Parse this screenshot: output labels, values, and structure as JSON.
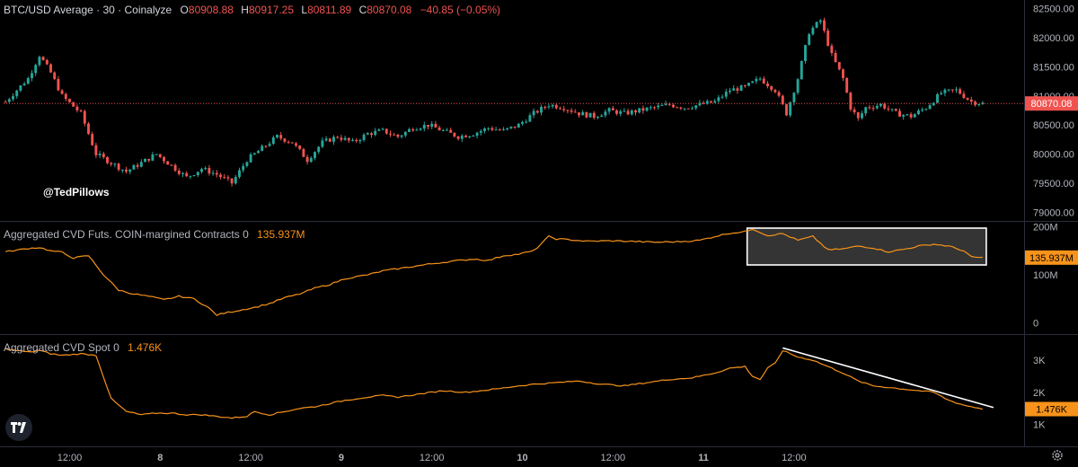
{
  "header": {
    "symbol": "BTC/USD Average · 30 · Coinalyze",
    "o_label": "O",
    "o_value": "80908.88",
    "h_label": "H",
    "h_value": "80917.25",
    "l_label": "L",
    "l_value": "80811.89",
    "c_label": "C",
    "c_value": "80870.08",
    "change": "−40.85 (−0.05%)"
  },
  "watermark": "@TedPillows",
  "colors": {
    "up": "#26a69a",
    "down": "#ef5350",
    "cvd": "#f7931a",
    "price_tag": "#ef5350",
    "cvd_tag": "#f7931a"
  },
  "chart_data": [
    {
      "type": "candlestick",
      "title": "BTC/USD Average · 30 · Coinalyze",
      "x_unit": "30-minute bars",
      "y_ticks": [
        79000,
        79500,
        80000,
        80500,
        81000,
        81500,
        82000,
        82500
      ],
      "y_tick_labels": [
        "79000.00",
        "79500.00",
        "80000.00",
        "80500.00",
        "81000.00",
        "81500.00",
        "82000.00",
        "82500.00"
      ],
      "ylim": [
        78850,
        82650
      ],
      "last_value": "80870.08",
      "close_path": [
        [
          0,
          80900
        ],
        [
          6,
          81300
        ],
        [
          9,
          81700
        ],
        [
          12,
          81400
        ],
        [
          15,
          81000
        ],
        [
          20,
          80700
        ],
        [
          24,
          80000
        ],
        [
          28,
          79850
        ],
        [
          32,
          79700
        ],
        [
          36,
          79850
        ],
        [
          40,
          80000
        ],
        [
          44,
          79800
        ],
        [
          48,
          79600
        ],
        [
          52,
          79750
        ],
        [
          56,
          79650
        ],
        [
          60,
          79500
        ],
        [
          64,
          79900
        ],
        [
          68,
          80100
        ],
        [
          72,
          80300
        ],
        [
          76,
          80200
        ],
        [
          80,
          79900
        ],
        [
          84,
          80200
        ],
        [
          88,
          80300
        ],
        [
          92,
          80200
        ],
        [
          96,
          80350
        ],
        [
          100,
          80400
        ],
        [
          104,
          80300
        ],
        [
          108,
          80450
        ],
        [
          112,
          80500
        ],
        [
          116,
          80400
        ],
        [
          120,
          80300
        ],
        [
          124,
          80350
        ],
        [
          128,
          80450
        ],
        [
          132,
          80400
        ],
        [
          136,
          80500
        ],
        [
          140,
          80700
        ],
        [
          144,
          80850
        ],
        [
          148,
          80800
        ],
        [
          152,
          80700
        ],
        [
          156,
          80650
        ],
        [
          160,
          80750
        ],
        [
          164,
          80700
        ],
        [
          168,
          80750
        ],
        [
          172,
          80800
        ],
        [
          176,
          80850
        ],
        [
          180,
          80800
        ],
        [
          184,
          80850
        ],
        [
          188,
          80900
        ],
        [
          192,
          81100
        ],
        [
          196,
          81150
        ],
        [
          200,
          81300
        ],
        [
          204,
          81100
        ],
        [
          207,
          80700
        ],
        [
          210,
          81300
        ],
        [
          213,
          82100
        ],
        [
          216,
          82300
        ],
        [
          219,
          81700
        ],
        [
          222,
          81300
        ],
        [
          224,
          80800
        ],
        [
          226,
          80600
        ],
        [
          228,
          80800
        ],
        [
          232,
          80850
        ],
        [
          236,
          80700
        ],
        [
          240,
          80650
        ],
        [
          244,
          80800
        ],
        [
          248,
          81050
        ],
        [
          252,
          81100
        ],
        [
          256,
          80900
        ],
        [
          259,
          80870
        ]
      ]
    },
    {
      "type": "line",
      "title": "Aggregated CVD Futs. COIN-margined Contracts 0",
      "last_value": "135.937M",
      "y_ticks": [
        0,
        100,
        200
      ],
      "y_tick_labels": [
        "0",
        "100M",
        "200M"
      ],
      "y_unit": "M",
      "ylim": [
        -20,
        205
      ],
      "points": [
        [
          0,
          148
        ],
        [
          6,
          155
        ],
        [
          9,
          157
        ],
        [
          12,
          150
        ],
        [
          15,
          147
        ],
        [
          18,
          135
        ],
        [
          22,
          140
        ],
        [
          26,
          100
        ],
        [
          30,
          68
        ],
        [
          34,
          60
        ],
        [
          38,
          55
        ],
        [
          42,
          48
        ],
        [
          46,
          55
        ],
        [
          50,
          50
        ],
        [
          54,
          30
        ],
        [
          56,
          16
        ],
        [
          58,
          20
        ],
        [
          62,
          26
        ],
        [
          66,
          32
        ],
        [
          70,
          40
        ],
        [
          74,
          52
        ],
        [
          78,
          60
        ],
        [
          82,
          72
        ],
        [
          86,
          80
        ],
        [
          90,
          92
        ],
        [
          96,
          100
        ],
        [
          100,
          108
        ],
        [
          106,
          115
        ],
        [
          112,
          122
        ],
        [
          118,
          128
        ],
        [
          124,
          133
        ],
        [
          128,
          130
        ],
        [
          132,
          140
        ],
        [
          136,
          143
        ],
        [
          140,
          150
        ],
        [
          142,
          165
        ],
        [
          144,
          180
        ],
        [
          146,
          175
        ],
        [
          150,
          173
        ],
        [
          154,
          170
        ],
        [
          160,
          171
        ],
        [
          166,
          170
        ],
        [
          172,
          168
        ],
        [
          178,
          169
        ],
        [
          184,
          172
        ],
        [
          188,
          180
        ],
        [
          192,
          187
        ],
        [
          196,
          190
        ],
        [
          198,
          196
        ],
        [
          202,
          182
        ],
        [
          206,
          186
        ],
        [
          210,
          172
        ],
        [
          214,
          180
        ],
        [
          218,
          152
        ],
        [
          222,
          154
        ],
        [
          226,
          160
        ],
        [
          230,
          156
        ],
        [
          234,
          148
        ],
        [
          238,
          153
        ],
        [
          242,
          160
        ],
        [
          246,
          164
        ],
        [
          250,
          160
        ],
        [
          254,
          150
        ],
        [
          256,
          137
        ],
        [
          259,
          136
        ]
      ],
      "highlight_range": [
        198,
        259
      ]
    },
    {
      "type": "line",
      "title": "Aggregated CVD Spot 0",
      "last_value": "1.476K",
      "y_ticks": [
        1000,
        2000,
        3000
      ],
      "y_tick_labels": [
        "1K",
        "2K",
        "3K"
      ],
      "y_unit": "K",
      "ylim": [
        400,
        3700
      ],
      "points": [
        [
          0,
          3350
        ],
        [
          6,
          3250
        ],
        [
          9,
          3300
        ],
        [
          12,
          3200
        ],
        [
          15,
          3150
        ],
        [
          20,
          3200
        ],
        [
          24,
          3150
        ],
        [
          28,
          1800
        ],
        [
          32,
          1400
        ],
        [
          36,
          1300
        ],
        [
          40,
          1350
        ],
        [
          44,
          1350
        ],
        [
          48,
          1300
        ],
        [
          52,
          1300
        ],
        [
          56,
          1250
        ],
        [
          60,
          1200
        ],
        [
          64,
          1250
        ],
        [
          66,
          1400
        ],
        [
          70,
          1300
        ],
        [
          74,
          1400
        ],
        [
          78,
          1500
        ],
        [
          82,
          1550
        ],
        [
          86,
          1650
        ],
        [
          90,
          1750
        ],
        [
          96,
          1850
        ],
        [
          100,
          1900
        ],
        [
          104,
          1850
        ],
        [
          110,
          1950
        ],
        [
          116,
          2050
        ],
        [
          122,
          2000
        ],
        [
          130,
          2100
        ],
        [
          136,
          2200
        ],
        [
          140,
          2250
        ],
        [
          146,
          2300
        ],
        [
          152,
          2350
        ],
        [
          158,
          2250
        ],
        [
          164,
          2200
        ],
        [
          170,
          2300
        ],
        [
          176,
          2400
        ],
        [
          182,
          2450
        ],
        [
          188,
          2600
        ],
        [
          192,
          2750
        ],
        [
          196,
          2800
        ],
        [
          198,
          2500
        ],
        [
          200,
          2400
        ],
        [
          202,
          2750
        ],
        [
          204,
          2900
        ],
        [
          206,
          3300
        ],
        [
          210,
          3100
        ],
        [
          214,
          3000
        ],
        [
          218,
          2800
        ],
        [
          222,
          2600
        ],
        [
          226,
          2350
        ],
        [
          230,
          2200
        ],
        [
          234,
          2150
        ],
        [
          238,
          2100
        ],
        [
          242,
          2050
        ],
        [
          246,
          2000
        ],
        [
          250,
          1750
        ],
        [
          254,
          1600
        ],
        [
          259,
          1480
        ]
      ],
      "trendline": [
        [
          206,
          3380
        ],
        [
          259,
          1750
        ]
      ]
    }
  ],
  "x_axis": {
    "labels": [
      {
        "bar": 17,
        "label": "12:00"
      },
      {
        "bar": 41,
        "label": "8"
      },
      {
        "bar": 65,
        "label": "12:00"
      },
      {
        "bar": 89,
        "label": "9"
      },
      {
        "bar": 113,
        "label": "12:00"
      },
      {
        "bar": 137,
        "label": "10"
      },
      {
        "bar": 161,
        "label": "12:00"
      },
      {
        "bar": 185,
        "label": "11"
      },
      {
        "bar": 209,
        "label": "12:00"
      }
    ]
  },
  "icons": {
    "logo": "tradingview-logo-icon",
    "settings": "gear-icon"
  }
}
